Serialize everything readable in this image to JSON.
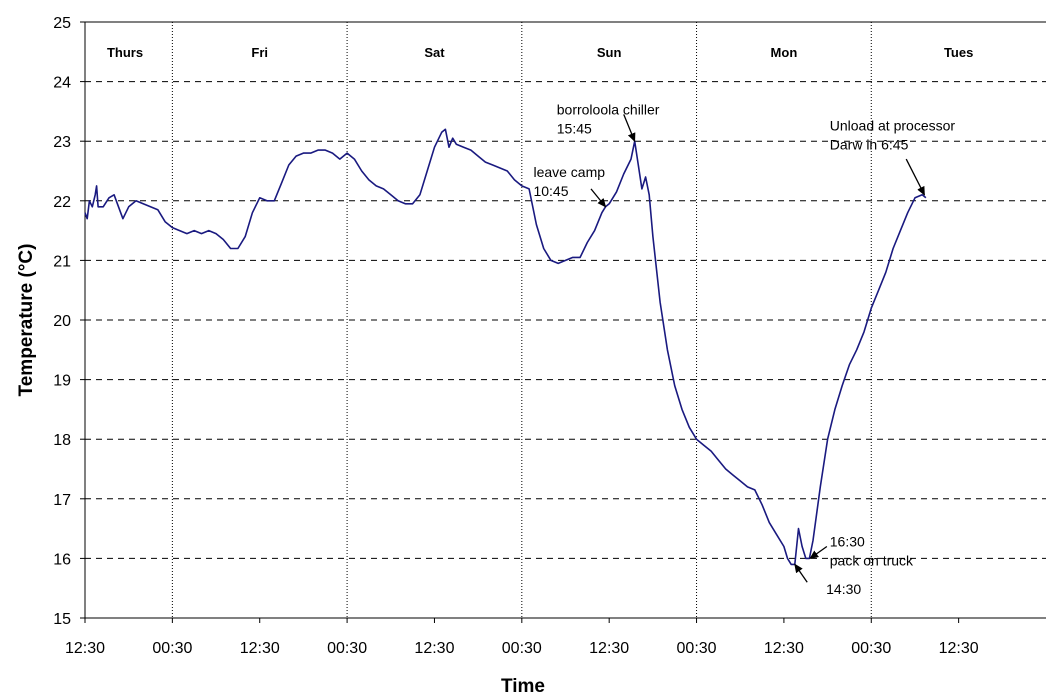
{
  "chart_data": {
    "type": "line",
    "title": "",
    "xlabel": "Time",
    "ylabel": "Temperature (°C)",
    "ylim": [
      15,
      25
    ],
    "y_ticks": [
      15,
      16,
      17,
      18,
      19,
      20,
      21,
      22,
      23,
      24,
      25
    ],
    "xlim_hours": [
      0,
      132
    ],
    "x_ticks": [
      {
        "label": "12:30",
        "hour": 0
      },
      {
        "label": "00:30",
        "hour": 12
      },
      {
        "label": "12:30",
        "hour": 24
      },
      {
        "label": "00:30",
        "hour": 36
      },
      {
        "label": "12:30",
        "hour": 48
      },
      {
        "label": "00:30",
        "hour": 60
      },
      {
        "label": "12:30",
        "hour": 72
      },
      {
        "label": "00:30",
        "hour": 84
      },
      {
        "label": "12:30",
        "hour": 96
      },
      {
        "label": "00:30",
        "hour": 108
      },
      {
        "label": "12:30",
        "hour": 120
      }
    ],
    "day_boundaries_hours": [
      12,
      36,
      60,
      84,
      108
    ],
    "days": [
      {
        "label": "Thurs",
        "hour": 5.5
      },
      {
        "label": "Fri",
        "hour": 24
      },
      {
        "label": "Sat",
        "hour": 48
      },
      {
        "label": "Sun",
        "hour": 72
      },
      {
        "label": "Mon",
        "hour": 96
      },
      {
        "label": "Tues",
        "hour": 120
      }
    ],
    "grid": {
      "horizontal": true,
      "horizontal_style": "dashed",
      "vertical": "day-boundaries-dotted"
    },
    "series": [
      {
        "color": "#1a1a80",
        "points": [
          [
            0,
            21.8
          ],
          [
            0.3,
            21.7
          ],
          [
            0.6,
            22.0
          ],
          [
            1.0,
            21.9
          ],
          [
            1.4,
            22.1
          ],
          [
            1.6,
            22.25
          ],
          [
            1.8,
            21.9
          ],
          [
            2.5,
            21.9
          ],
          [
            3.3,
            22.05
          ],
          [
            4.0,
            22.1
          ],
          [
            4.6,
            21.9
          ],
          [
            5.2,
            21.7
          ],
          [
            6.0,
            21.9
          ],
          [
            7.0,
            22.0
          ],
          [
            8.0,
            21.95
          ],
          [
            9.0,
            21.9
          ],
          [
            10.0,
            21.85
          ],
          [
            11.0,
            21.65
          ],
          [
            12.0,
            21.55
          ],
          [
            13.0,
            21.5
          ],
          [
            14.0,
            21.45
          ],
          [
            15.0,
            21.5
          ],
          [
            16.0,
            21.45
          ],
          [
            17.0,
            21.5
          ],
          [
            18.0,
            21.45
          ],
          [
            19.0,
            21.35
          ],
          [
            20.0,
            21.2
          ],
          [
            21.0,
            21.2
          ],
          [
            22.0,
            21.4
          ],
          [
            23.0,
            21.8
          ],
          [
            24.0,
            22.05
          ],
          [
            25.0,
            22.0
          ],
          [
            26.0,
            22.0
          ],
          [
            27.0,
            22.3
          ],
          [
            28.0,
            22.6
          ],
          [
            29.0,
            22.75
          ],
          [
            30.0,
            22.8
          ],
          [
            31.0,
            22.8
          ],
          [
            32.0,
            22.85
          ],
          [
            33.0,
            22.85
          ],
          [
            34.0,
            22.8
          ],
          [
            35.0,
            22.7
          ],
          [
            36.0,
            22.8
          ],
          [
            37.0,
            22.7
          ],
          [
            38.0,
            22.5
          ],
          [
            39.0,
            22.35
          ],
          [
            40.0,
            22.25
          ],
          [
            41.0,
            22.2
          ],
          [
            42.0,
            22.1
          ],
          [
            43.0,
            22.0
          ],
          [
            44.0,
            21.95
          ],
          [
            45.0,
            21.95
          ],
          [
            46.0,
            22.1
          ],
          [
            47.0,
            22.5
          ],
          [
            48.0,
            22.9
          ],
          [
            49.0,
            23.15
          ],
          [
            49.5,
            23.2
          ],
          [
            50.0,
            22.9
          ],
          [
            50.5,
            23.05
          ],
          [
            51.0,
            22.95
          ],
          [
            52.0,
            22.9
          ],
          [
            53.0,
            22.85
          ],
          [
            54.0,
            22.75
          ],
          [
            55.0,
            22.65
          ],
          [
            56.0,
            22.6
          ],
          [
            57.0,
            22.55
          ],
          [
            58.0,
            22.5
          ],
          [
            59.0,
            22.35
          ],
          [
            60.0,
            22.25
          ],
          [
            61.0,
            22.2
          ],
          [
            62.0,
            21.6
          ],
          [
            63.0,
            21.2
          ],
          [
            64.0,
            21.0
          ],
          [
            65.0,
            20.95
          ],
          [
            66.0,
            21.0
          ],
          [
            67.0,
            21.05
          ],
          [
            68.0,
            21.05
          ],
          [
            69.0,
            21.3
          ],
          [
            70.0,
            21.5
          ],
          [
            71.0,
            21.8
          ],
          [
            71.5,
            21.9
          ],
          [
            72.0,
            21.95
          ],
          [
            73.0,
            22.15
          ],
          [
            74.0,
            22.45
          ],
          [
            75.0,
            22.7
          ],
          [
            75.5,
            23.0
          ],
          [
            76.0,
            22.6
          ],
          [
            76.5,
            22.2
          ],
          [
            77.0,
            22.4
          ],
          [
            77.5,
            22.1
          ],
          [
            78.0,
            21.4
          ],
          [
            79.0,
            20.3
          ],
          [
            80.0,
            19.5
          ],
          [
            81.0,
            18.9
          ],
          [
            82.0,
            18.5
          ],
          [
            83.0,
            18.2
          ],
          [
            84.0,
            18.0
          ],
          [
            85.0,
            17.9
          ],
          [
            86.0,
            17.8
          ],
          [
            87.0,
            17.65
          ],
          [
            88.0,
            17.5
          ],
          [
            89.0,
            17.4
          ],
          [
            90.0,
            17.3
          ],
          [
            91.0,
            17.2
          ],
          [
            92.0,
            17.15
          ],
          [
            93.0,
            16.9
          ],
          [
            94.0,
            16.6
          ],
          [
            95.0,
            16.4
          ],
          [
            96.0,
            16.2
          ],
          [
            96.5,
            16.0
          ],
          [
            97.0,
            15.9
          ],
          [
            97.5,
            15.9
          ],
          [
            98.0,
            16.5
          ],
          [
            98.5,
            16.2
          ],
          [
            99.0,
            16.0
          ],
          [
            99.5,
            16.0
          ],
          [
            100.0,
            16.3
          ],
          [
            101.0,
            17.2
          ],
          [
            102.0,
            18.0
          ],
          [
            103.0,
            18.5
          ],
          [
            104.0,
            18.9
          ],
          [
            105.0,
            19.25
          ],
          [
            106.0,
            19.5
          ],
          [
            107.0,
            19.8
          ],
          [
            108.0,
            20.2
          ],
          [
            109.0,
            20.5
          ],
          [
            110.0,
            20.8
          ],
          [
            111.0,
            21.2
          ],
          [
            112.0,
            21.5
          ],
          [
            113.0,
            21.8
          ],
          [
            114.0,
            22.05
          ],
          [
            115.0,
            22.1
          ],
          [
            115.5,
            22.05
          ]
        ]
      }
    ],
    "annotations": [
      {
        "lines": [
          "borroloola chiller",
          "15:45"
        ],
        "target": [
          75.5,
          23.0
        ],
        "text_anchor": [
          64.8,
          23.45
        ],
        "arrow_from": [
          74.0,
          23.45
        ]
      },
      {
        "lines": [
          "leave camp",
          "10:45"
        ],
        "target": [
          71.5,
          21.9
        ],
        "text_anchor": [
          61.6,
          22.4
        ],
        "arrow_from": [
          69.5,
          22.2
        ]
      },
      {
        "lines": [
          "Unload at processor",
          "Darw in 6:45"
        ],
        "target": [
          115.3,
          22.1
        ],
        "text_anchor": [
          102.3,
          23.18
        ],
        "arrow_from": [
          112.8,
          22.7
        ]
      },
      {
        "lines": [
          "16:30",
          "pack on truck"
        ],
        "target": [
          99.6,
          16.0
        ],
        "text_anchor": [
          102.3,
          16.2
        ],
        "arrow_from": [
          101.9,
          16.2
        ]
      },
      {
        "lines": [
          "14:30"
        ],
        "target": [
          97.5,
          15.9
        ],
        "text_anchor": [
          101.8,
          15.4
        ],
        "arrow_from": [
          99.2,
          15.6
        ]
      }
    ]
  }
}
